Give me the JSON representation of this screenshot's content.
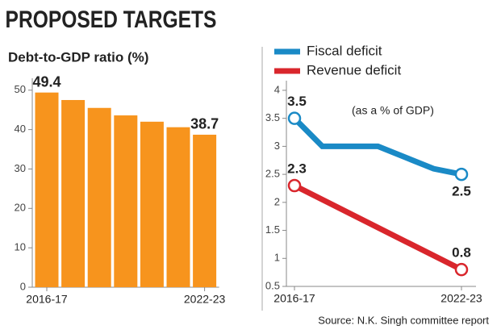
{
  "title": "PROPOSED TARGETS",
  "source": "Source: N.K. Singh committee report",
  "chart_data": [
    {
      "type": "bar",
      "title": "Debt-to-GDP ratio (%)",
      "categories": [
        "2016-17",
        null,
        null,
        null,
        null,
        null,
        "2022-23"
      ],
      "values": [
        49.4,
        47.5,
        45.5,
        43.6,
        42.0,
        40.6,
        38.7
      ],
      "value_labels": [
        "49.4",
        null,
        null,
        null,
        null,
        null,
        "38.7"
      ],
      "color": "#f7941d",
      "ylim": [
        0,
        52
      ],
      "yticks": [
        0,
        10,
        20,
        30,
        40,
        50
      ],
      "grid": false
    },
    {
      "type": "line",
      "annotation": "(as a % of GDP)",
      "categories": [
        "2016-17",
        null,
        null,
        null,
        null,
        null,
        "2022-23"
      ],
      "series": [
        {
          "name": "Fiscal deficit",
          "color": "#1a8ac6",
          "values": [
            3.5,
            3.0,
            3.0,
            3.0,
            2.8,
            2.6,
            2.5
          ],
          "value_labels": [
            "3.5",
            null,
            null,
            null,
            null,
            null,
            "2.5"
          ]
        },
        {
          "name": "Revenue deficit",
          "color": "#d9262c",
          "values": [
            2.3,
            2.05,
            1.8,
            1.55,
            1.3,
            1.05,
            0.8
          ],
          "value_labels": [
            "2.3",
            null,
            null,
            null,
            null,
            null,
            "0.8"
          ]
        }
      ],
      "ylim": [
        0.5,
        4.1
      ],
      "yticks": [
        0.5,
        1,
        1.5,
        2,
        2.5,
        3,
        3.5,
        4
      ],
      "grid": false,
      "legend": "top"
    }
  ]
}
